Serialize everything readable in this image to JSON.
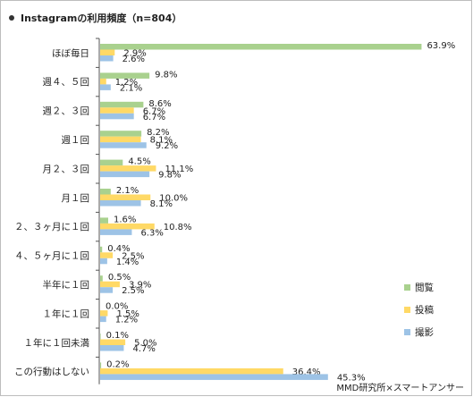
{
  "title": "Instagramの利用頻度（n=804）",
  "source": "MMD研究所×スマートアンサー",
  "chart_data": {
    "type": "bar",
    "orientation": "horizontal",
    "categories": [
      "ほぼ毎日",
      "週４、５回",
      "週２、３回",
      "週１回",
      "月２、３回",
      "月１回",
      "２、３ヶ月に１回",
      "４、５ヶ月に１回",
      "半年に１回",
      "１年に１回",
      "１年に１回未満",
      "この行動はしない"
    ],
    "series": [
      {
        "name": "閲覧",
        "color": "#a9d18e",
        "values": [
          63.9,
          9.8,
          8.6,
          8.2,
          4.5,
          2.1,
          1.6,
          0.4,
          0.5,
          0.0,
          0.1,
          0.2
        ]
      },
      {
        "name": "投稿",
        "color": "#ffd966",
        "values": [
          2.9,
          1.2,
          6.7,
          8.1,
          11.1,
          10.0,
          10.8,
          2.5,
          3.9,
          1.5,
          5.0,
          36.4
        ]
      },
      {
        "name": "撮影",
        "color": "#9dc3e6",
        "values": [
          2.6,
          2.1,
          6.7,
          9.2,
          9.8,
          8.1,
          6.3,
          1.4,
          2.5,
          1.2,
          4.7,
          45.3
        ]
      }
    ],
    "value_suffix": "%",
    "xlim": [
      0,
      64
    ],
    "grid": false,
    "legend_position": "right"
  }
}
